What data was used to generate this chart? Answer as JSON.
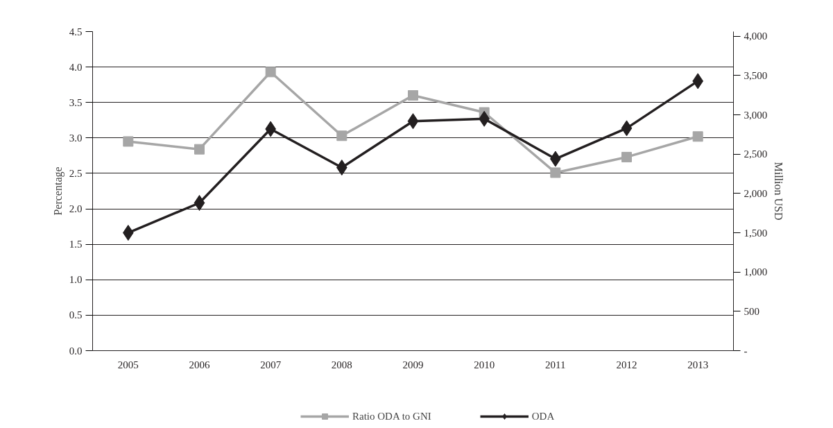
{
  "chart_data": {
    "type": "line",
    "categories": [
      "2005",
      "2006",
      "2007",
      "2008",
      "2009",
      "2010",
      "2011",
      "2012",
      "2013"
    ],
    "ylabel": "Percentage",
    "y2label": "Million USD",
    "ylim": [
      0,
      4.5
    ],
    "yticks": [
      {
        "value": 0,
        "label": "0.0"
      },
      0.5,
      {
        "value": 1,
        "label": "1.0"
      },
      1.5,
      {
        "value": 2,
        "label": "2.0"
      },
      2.5,
      {
        "value": 3,
        "label": "3.0"
      },
      3.5,
      {
        "value": 4,
        "label": "4.0"
      },
      4.5
    ],
    "y2lim": [
      0,
      4060
    ],
    "y2ticks": [
      {
        "value": 0,
        "label": "-"
      },
      500,
      {
        "value": 1000,
        "label": "1,000"
      },
      {
        "value": 1500,
        "label": "1,500"
      },
      {
        "value": 2000,
        "label": "2,000"
      },
      {
        "value": 2500,
        "label": "2,500"
      },
      {
        "value": 3000,
        "label": "3,000"
      },
      {
        "value": 3500,
        "label": "3,500"
      },
      {
        "value": 4000,
        "label": "4,000"
      }
    ],
    "grid": "y",
    "legend": "bottom",
    "series": [
      {
        "name": "Ratio ODA to GNI",
        "color": "#a6a6a6",
        "marker": "square",
        "values": [
          2.95,
          2.84,
          3.93,
          3.03,
          3.6,
          3.36,
          2.51,
          2.73,
          3.02
        ]
      },
      {
        "name": "ODA",
        "color": "#231f20",
        "marker": "diamond",
        "axis": "y2",
        "values": [
          1500,
          1880,
          2820,
          2330,
          2920,
          2950,
          2440,
          2830,
          3430
        ]
      }
    ]
  }
}
